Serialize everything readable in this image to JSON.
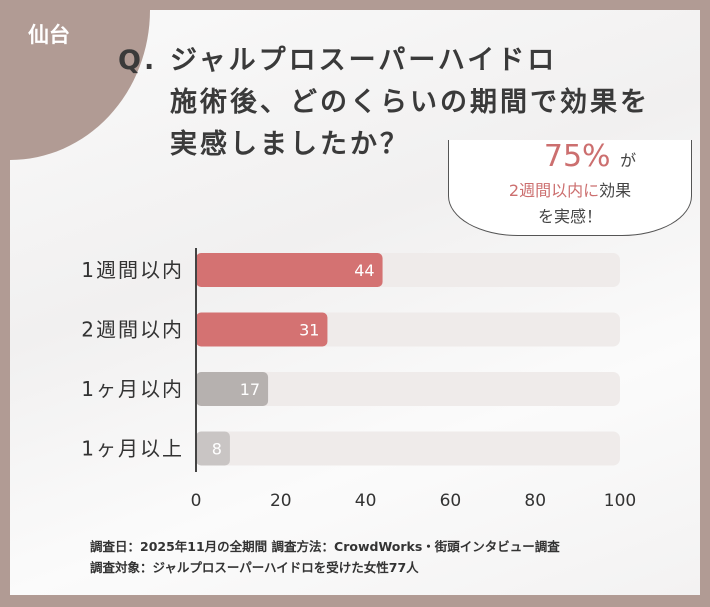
{
  "region_label": "仙台",
  "question": {
    "mark": "Q.",
    "lines": [
      "ジャルプロスーパーハイドロ",
      "施術後、どのくらいの期間で効果を",
      "実感しましたか？"
    ]
  },
  "callout": {
    "percent": "75%",
    "particle": "が",
    "highlight": "2週間以内に",
    "line2_rest": "効果",
    "line3": "を実感！"
  },
  "chart_data": {
    "type": "bar",
    "orientation": "horizontal",
    "categories": [
      "1週間以内",
      "2週間以内",
      "1ヶ月以内",
      "1ヶ月以上"
    ],
    "values": [
      44,
      31,
      17,
      8
    ],
    "xlim": [
      0,
      100
    ],
    "xticks": [
      "0",
      "20",
      "40",
      "60",
      "80",
      "100"
    ],
    "colors": [
      "#d47272",
      "#d47272",
      "#b6b1af",
      "#c9c5c4"
    ],
    "track_color": "#efebea"
  },
  "footnote": {
    "line1": "調査日：2025年11月の全期間 調査方法：CrowdWorks・街頭インタビュー調査",
    "line2": "調査対象：ジャルプロスーパーハイドロを受けた女性77人"
  }
}
